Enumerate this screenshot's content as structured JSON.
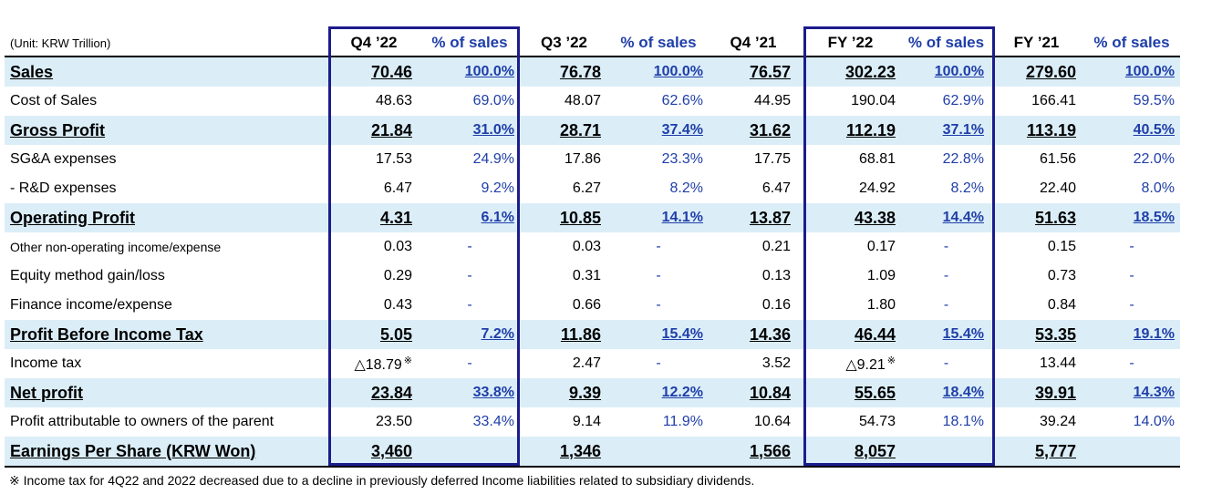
{
  "unit_label": "(Unit: KRW Trillion)",
  "columns": [
    "Q4 ’22",
    "% of sales",
    "Q3 ’22",
    "% of sales",
    "Q4 ’21",
    "FY ’22",
    "% of sales",
    "FY ’21",
    "% of sales"
  ],
  "rows": [
    {
      "label": "Sales",
      "style": "bold",
      "cells": [
        "70.46",
        "100.0%",
        "76.78",
        "100.0%",
        "76.57",
        "302.23",
        "100.0%",
        "279.60",
        "100.0%"
      ]
    },
    {
      "label": "Cost of Sales",
      "style": "normal",
      "cells": [
        "48.63",
        "69.0%",
        "48.07",
        "62.6%",
        "44.95",
        "190.04",
        "62.9%",
        "166.41",
        "59.5%"
      ]
    },
    {
      "label": "Gross Profit",
      "style": "bold",
      "cells": [
        "21.84",
        "31.0%",
        "28.71",
        "37.4%",
        "31.62",
        "112.19",
        "37.1%",
        "113.19",
        "40.5%"
      ]
    },
    {
      "label": "SG&A expenses",
      "style": "normal",
      "cells": [
        "17.53",
        "24.9%",
        "17.86",
        "23.3%",
        "17.75",
        "68.81",
        "22.8%",
        "61.56",
        "22.0%"
      ]
    },
    {
      "label": " - R&D expenses",
      "style": "normal",
      "cells": [
        "6.47",
        "9.2%",
        "6.27",
        "8.2%",
        "6.47",
        "24.92",
        "8.2%",
        "22.40",
        "8.0%"
      ]
    },
    {
      "label": "Operating Profit",
      "style": "bold",
      "cells": [
        "4.31",
        "6.1%",
        "10.85",
        "14.1%",
        "13.87",
        "43.38",
        "14.4%",
        "51.63",
        "18.5%"
      ]
    },
    {
      "label": "Other non-operating income/expense",
      "style": "small",
      "cells": [
        "0.03",
        "-",
        "0.03",
        "-",
        "0.21",
        "0.17",
        "-",
        "0.15",
        "-"
      ]
    },
    {
      "label": "Equity method gain/loss",
      "style": "normal",
      "cells": [
        "0.29",
        "-",
        "0.31",
        "-",
        "0.13",
        "1.09",
        "-",
        "0.73",
        "-"
      ]
    },
    {
      "label": "Finance income/expense",
      "style": "normal",
      "cells": [
        "0.43",
        "-",
        "0.66",
        "-",
        "0.16",
        "1.80",
        "-",
        "0.84",
        "-"
      ]
    },
    {
      "label": "Profit Before Income Tax",
      "style": "bold",
      "cells": [
        "5.05",
        "7.2%",
        "11.86",
        "15.4%",
        "14.36",
        "46.44",
        "15.4%",
        "53.35",
        "19.1%"
      ]
    },
    {
      "label": "Income tax",
      "style": "normal",
      "cells": [
        "△18.79",
        "-",
        "2.47",
        "-",
        "3.52",
        "△9.21",
        "-",
        "13.44",
        "-"
      ],
      "marks": [
        "※",
        "",
        "",
        "",
        "",
        "※",
        "",
        "",
        ""
      ]
    },
    {
      "label": "Net profit",
      "style": "bold",
      "cells": [
        "23.84",
        "33.8%",
        "9.39",
        "12.2%",
        "10.84",
        "55.65",
        "18.4%",
        "39.91",
        "14.3%"
      ]
    },
    {
      "label": "Profit attributable to owners of the parent",
      "style": "normal",
      "cells": [
        "23.50",
        "33.4%",
        "9.14",
        "11.9%",
        "10.64",
        "54.73",
        "18.1%",
        "39.24",
        "14.0%"
      ]
    },
    {
      "label": "Earnings Per Share (KRW Won)",
      "style": "bold",
      "cells": [
        "3,460",
        "",
        "1,346",
        "",
        "1,566",
        "8,057",
        "",
        "5,777",
        ""
      ]
    }
  ],
  "footnote": "※ Income tax for 4Q22 and 2022 decreased due to a decline in previously deferred Income liabilities related to subsidiary dividends.",
  "colors": {
    "pct_text": "#1f3ea8",
    "highlight_row": "#dbeef8",
    "box_border": "#1c1c8c"
  }
}
